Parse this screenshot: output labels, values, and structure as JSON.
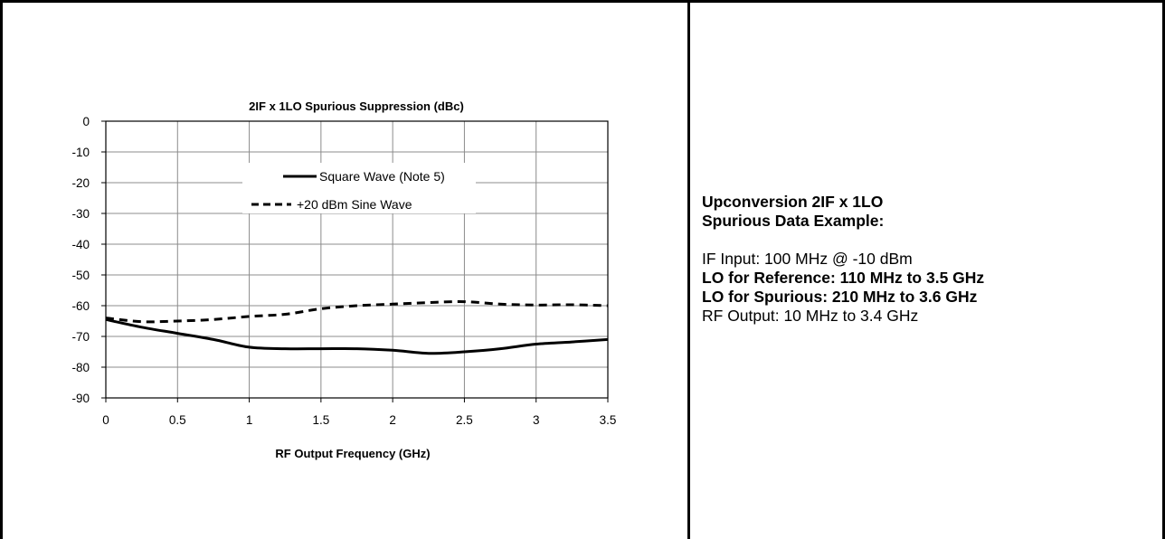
{
  "chart_data": {
    "type": "line",
    "title": "2IF x 1LO Spurious Suppression (dBc)",
    "xlabel": "RF Output Frequency (GHz)",
    "ylabel": "",
    "xlim": [
      0,
      3.5
    ],
    "ylim": [
      -90,
      0
    ],
    "x_ticks": [
      "0",
      "0.5",
      "1",
      "1.5",
      "2",
      "2.5",
      "3",
      "3.5"
    ],
    "y_ticks": [
      "0",
      "-10",
      "-20",
      "-30",
      "-40",
      "-50",
      "-60",
      "-70",
      "-80",
      "-90"
    ],
    "grid": true,
    "legend_position": "upper-center",
    "series": [
      {
        "name": "Square Wave (Note 5)",
        "style": "solid",
        "x": [
          0,
          0.25,
          0.5,
          0.75,
          1.0,
          1.25,
          1.5,
          1.75,
          2.0,
          2.25,
          2.5,
          2.75,
          3.0,
          3.25,
          3.5
        ],
        "values": [
          -64.5,
          -67,
          -69,
          -71,
          -73.5,
          -74,
          -74,
          -74,
          -74.5,
          -75.5,
          -75,
          -74,
          -72.5,
          -71.8,
          -71
        ]
      },
      {
        "name": "+20 dBm Sine Wave",
        "style": "dashed",
        "x": [
          0,
          0.25,
          0.5,
          0.75,
          1.0,
          1.25,
          1.5,
          1.75,
          2.0,
          2.25,
          2.5,
          2.75,
          3.0,
          3.25,
          3.5
        ],
        "values": [
          -64,
          -65.2,
          -65,
          -64.5,
          -63.5,
          -62.8,
          -61,
          -60,
          -59.5,
          -59,
          -58.7,
          -59.5,
          -59.8,
          -59.7,
          -60
        ]
      }
    ]
  },
  "notes": {
    "heading_line1": "Upconversion 2IF x 1LO",
    "heading_line2": "Spurious Data Example:",
    "if_input": "IF Input: 100 MHz @ -10 dBm",
    "lo_reference": "LO for Reference: 110 MHz to 3.5 GHz",
    "lo_spurious": "LO for Spurious: 210 MHz to 3.6 GHz",
    "rf_output": "RF Output: 10 MHz to 3.4 GHz"
  }
}
